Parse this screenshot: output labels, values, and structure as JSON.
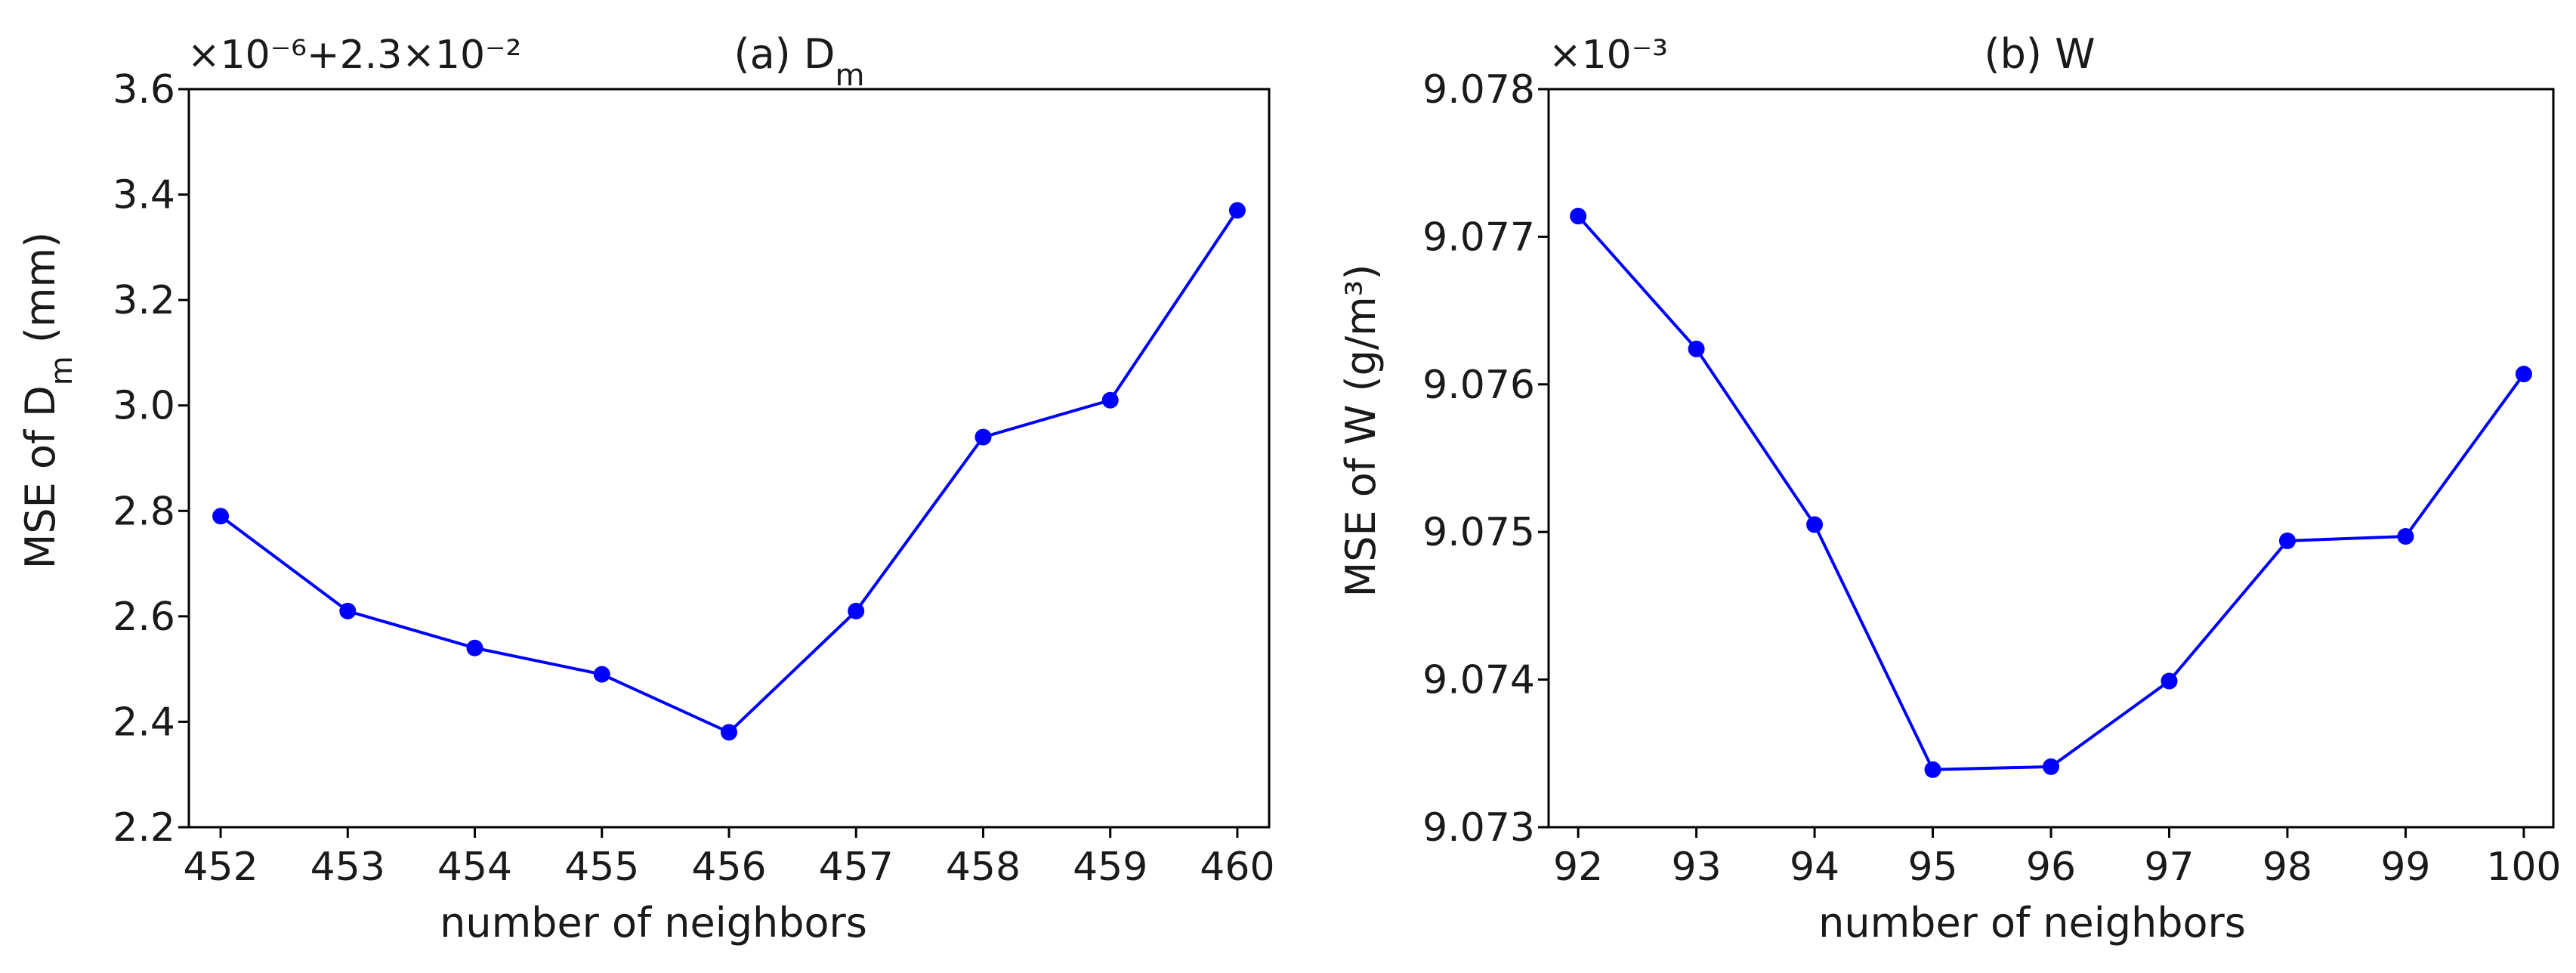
{
  "chart_data": [
    {
      "type": "line",
      "title": "(a) D",
      "title_sub": "m",
      "xlabel": "number of neighbors",
      "ylabel_prefix": "MSE of D",
      "ylabel_sub": "m",
      "ylabel_suffix": " (mm)",
      "offset_text": "×10⁻⁶+2.3×10⁻²",
      "x": [
        452,
        453,
        454,
        455,
        456,
        457,
        458,
        459,
        460
      ],
      "y": [
        2.79,
        2.61,
        2.54,
        2.49,
        2.38,
        2.61,
        2.94,
        3.01,
        3.37
      ],
      "xticks": [
        "452",
        "453",
        "454",
        "455",
        "456",
        "457",
        "458",
        "459",
        "460"
      ],
      "yticks": [
        "2.2",
        "2.4",
        "2.6",
        "2.8",
        "3.0",
        "3.2",
        "3.4",
        "3.6"
      ],
      "xlim": [
        451.75,
        460.25
      ],
      "ylim": [
        2.2,
        3.6
      ],
      "color": "#0000ff",
      "grid": false
    },
    {
      "type": "line",
      "title": "(b) W",
      "xlabel": "number of neighbors",
      "ylabel": "MSE of W (g/m³)",
      "offset_text": "×10⁻³",
      "x": [
        92,
        93,
        94,
        95,
        96,
        97,
        98,
        99,
        100
      ],
      "y": [
        9.07714,
        9.07624,
        9.07505,
        9.07339,
        9.07341,
        9.07399,
        9.07494,
        9.07497,
        9.07607
      ],
      "xticks": [
        "92",
        "93",
        "94",
        "95",
        "96",
        "97",
        "98",
        "99",
        "100"
      ],
      "yticks": [
        "9.073",
        "9.074",
        "9.075",
        "9.076",
        "9.077",
        "9.078"
      ],
      "xlim": [
        91.75,
        100.25
      ],
      "ylim": [
        9.073,
        9.078
      ],
      "color": "#0000ff",
      "grid": false
    }
  ]
}
